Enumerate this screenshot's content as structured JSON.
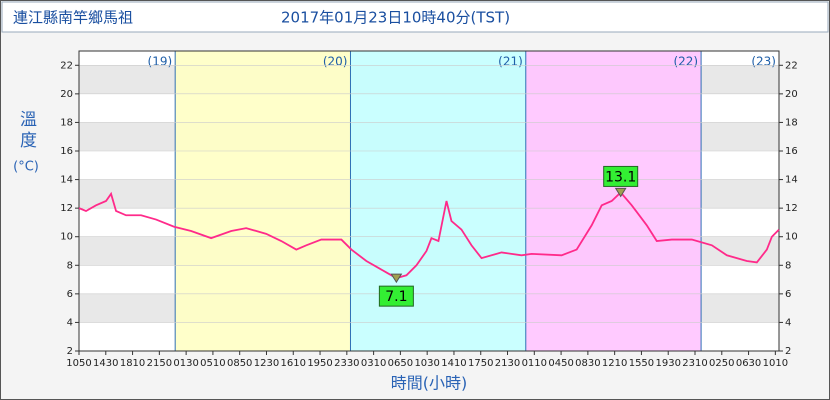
{
  "chart_data": {
    "type": "line",
    "station": "連江縣南竿鄉馬祖",
    "title": "2017年01月23日10時40分(TST)",
    "y_label": "溫度",
    "y_unit": "(°C)",
    "x_label": "時間(小時)",
    "xlim": [
      0,
      95.8333
    ],
    "ylim": [
      2,
      23
    ],
    "yticks": [
      2,
      4,
      6,
      8,
      10,
      12,
      14,
      16,
      18,
      20,
      22
    ],
    "xticks": [
      {
        "value": 0,
        "label": "1050"
      },
      {
        "value": 3.6667,
        "label": "1430"
      },
      {
        "value": 7.3333,
        "label": "1810"
      },
      {
        "value": 11,
        "label": "2150"
      },
      {
        "value": 14.6667,
        "label": "0130"
      },
      {
        "value": 18.3333,
        "label": "0510"
      },
      {
        "value": 22,
        "label": "0850"
      },
      {
        "value": 25.6667,
        "label": "1230"
      },
      {
        "value": 29.3333,
        "label": "1610"
      },
      {
        "value": 33,
        "label": "1950"
      },
      {
        "value": 36.6667,
        "label": "2330"
      },
      {
        "value": 40.3333,
        "label": "0310"
      },
      {
        "value": 44,
        "label": "0650"
      },
      {
        "value": 47.6667,
        "label": "1030"
      },
      {
        "value": 51.3333,
        "label": "1410"
      },
      {
        "value": 55,
        "label": "1750"
      },
      {
        "value": 58.6667,
        "label": "2130"
      },
      {
        "value": 62.3333,
        "label": "0110"
      },
      {
        "value": 66,
        "label": "0450"
      },
      {
        "value": 69.6667,
        "label": "0830"
      },
      {
        "value": 73.3333,
        "label": "1210"
      },
      {
        "value": 77,
        "label": "1550"
      },
      {
        "value": 80.6667,
        "label": "1930"
      },
      {
        "value": 84.3333,
        "label": "2310"
      },
      {
        "value": 88,
        "label": "0250"
      },
      {
        "value": 91.6667,
        "label": "0630"
      },
      {
        "value": 95.3333,
        "label": "1010"
      }
    ],
    "day_bounds": [
      13.1667,
      37.1667,
      61.1667,
      85.1667
    ],
    "day_labels": [
      "(19)",
      "(20)",
      "(21)",
      "(22)",
      "(23)"
    ],
    "day_colors": [
      null,
      "#ffffc4",
      "#c4ffff",
      "#ffc4ff",
      null
    ],
    "series": [
      {
        "color": "#ff2a8a",
        "x": [
          0,
          0.96,
          2.33,
          3.7,
          4.39,
          5.07,
          6.44,
          8.5,
          10.56,
          13.02,
          15.35,
          18.09,
          20.84,
          22.89,
          25.63,
          27.69,
          29.75,
          31.12,
          33.17,
          35.92,
          37.29,
          39.34,
          42.08,
          43.45,
          44.83,
          46.2,
          47.57,
          48.25,
          49.21,
          50.31,
          50.99,
          52.36,
          53.73,
          55.11,
          57.85,
          60.59,
          61.96,
          66.07,
          68.13,
          70.19,
          71.56,
          72.93,
          74.16,
          75.67,
          77.73,
          79.1,
          81.16,
          83.9,
          86.64,
          88.69,
          91.43,
          92.8,
          94.17,
          94.86,
          95.83
        ],
        "values": [
          12.0,
          11.8,
          12.2,
          12.5,
          13.0,
          11.8,
          11.5,
          11.5,
          11.2,
          10.7,
          10.4,
          9.9,
          10.4,
          10.6,
          10.2,
          9.7,
          9.1,
          9.4,
          9.8,
          9.8,
          9.1,
          8.3,
          7.5,
          7.1,
          7.3,
          8.0,
          9.0,
          9.9,
          9.7,
          12.5,
          11.1,
          10.5,
          9.4,
          8.5,
          8.9,
          8.7,
          8.8,
          8.7,
          9.1,
          10.8,
          12.2,
          12.5,
          13.1,
          12.2,
          10.8,
          9.7,
          9.8,
          9.8,
          9.4,
          8.7,
          8.3,
          8.2,
          9.1,
          10.0,
          10.5
        ]
      }
    ],
    "annotations": [
      {
        "x": 43.45,
        "value": 7.1,
        "position": "below"
      },
      {
        "x": 74.16,
        "value": 13.1,
        "position": "above"
      }
    ]
  }
}
